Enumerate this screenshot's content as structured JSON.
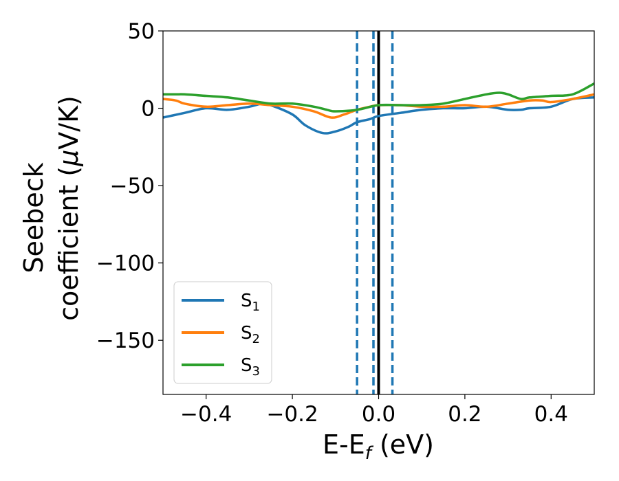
{
  "chart_data": {
    "type": "line",
    "xlabel": {
      "main": "E-E",
      "sub": "f",
      "suffix": " (eV)"
    },
    "ylabel": {
      "line1": "Seebeck",
      "line2_main": "coefficient  (",
      "line2_mu": "μ",
      "line2_suffix": "V/K)"
    },
    "xlim": [
      -0.5,
      0.5
    ],
    "ylim": [
      -185,
      50
    ],
    "xticks": [
      -0.4,
      -0.2,
      0.0,
      0.2,
      0.4
    ],
    "xtick_labels": [
      "−0.4",
      "−0.2",
      "0.0",
      "0.2",
      "0.4"
    ],
    "yticks": [
      50,
      0,
      -50,
      -100,
      -150
    ],
    "ytick_labels": [
      "50",
      "0",
      "−50",
      "−100",
      "−150"
    ],
    "grid": false,
    "legend_position": "lower-left",
    "series": [
      {
        "name": "S",
        "sub": "1",
        "color": "#1f77b4",
        "x": [
          -0.5,
          -0.45,
          -0.4,
          -0.35,
          -0.3,
          -0.27,
          -0.25,
          -0.2,
          -0.17,
          -0.13,
          -0.1,
          -0.07,
          -0.05,
          -0.02,
          0.0,
          0.05,
          0.1,
          0.15,
          0.2,
          0.25,
          0.3,
          0.33,
          0.35,
          0.4,
          0.45,
          0.5
        ],
        "y": [
          -6,
          -3,
          0,
          -1,
          1,
          3,
          2,
          -4,
          -11,
          -16,
          -15,
          -12,
          -9,
          -7,
          -5,
          -3,
          -1,
          0,
          0,
          1,
          -1,
          -1,
          0,
          1,
          6,
          7
        ]
      },
      {
        "name": "S",
        "sub": "2",
        "color": "#ff7f0e",
        "x": [
          -0.5,
          -0.47,
          -0.45,
          -0.4,
          -0.35,
          -0.3,
          -0.25,
          -0.2,
          -0.15,
          -0.11,
          -0.08,
          -0.05,
          -0.02,
          0.0,
          0.05,
          0.1,
          0.15,
          0.2,
          0.25,
          0.3,
          0.35,
          0.38,
          0.4,
          0.45,
          0.5
        ],
        "y": [
          6,
          5,
          3,
          1,
          2,
          3,
          2,
          1,
          -2,
          -6,
          -4,
          -1,
          1,
          2,
          2,
          1,
          1,
          2,
          1,
          3,
          5,
          5,
          4,
          6,
          9
        ]
      },
      {
        "name": "S",
        "sub": "3",
        "color": "#2ca02c",
        "x": [
          -0.5,
          -0.47,
          -0.45,
          -0.4,
          -0.35,
          -0.3,
          -0.25,
          -0.2,
          -0.15,
          -0.12,
          -0.1,
          -0.05,
          0.0,
          0.05,
          0.1,
          0.15,
          0.2,
          0.25,
          0.28,
          0.3,
          0.33,
          0.35,
          0.4,
          0.45,
          0.5
        ],
        "y": [
          9,
          9,
          9,
          8,
          7,
          5,
          3,
          3,
          1,
          -1,
          -2,
          -1,
          2,
          2,
          2,
          3,
          6,
          9,
          10,
          9,
          6,
          7,
          8,
          9,
          16
        ]
      }
    ],
    "vlines": [
      {
        "x": -0.05,
        "style": "dashed",
        "color": "#1f77b4"
      },
      {
        "x": -0.012,
        "style": "dashed",
        "color": "#1f77b4"
      },
      {
        "x": 0.0,
        "style": "solid",
        "color": "#000000"
      },
      {
        "x": 0.032,
        "style": "dashed",
        "color": "#1f77b4"
      }
    ]
  }
}
